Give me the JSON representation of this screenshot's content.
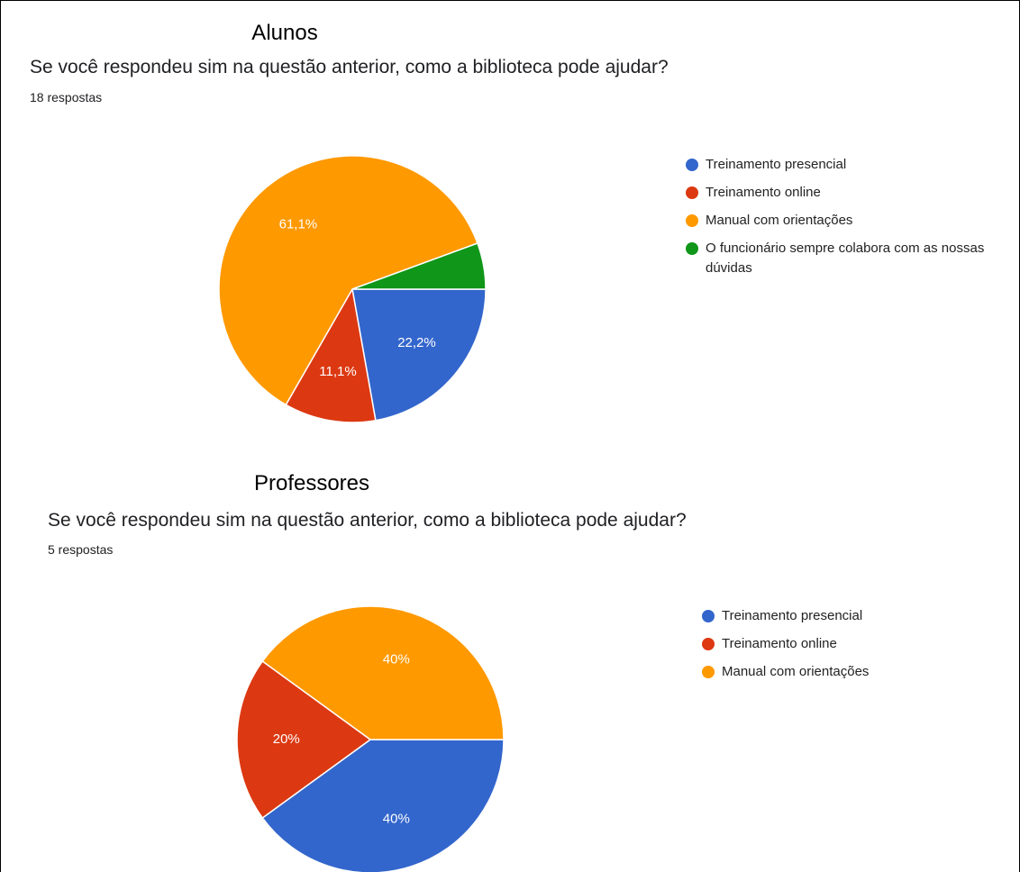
{
  "chart_data": [
    {
      "type": "pie",
      "title": "Alunos",
      "subtitle": "Se você respondeu sim na questão anterior,  como a biblioteca pode ajudar?",
      "note": "18 respostas",
      "categories": [
        "Treinamento presencial",
        "Treinamento online",
        "Manual com orientações",
        "O funcionário sempre colabora com as nossas dúvidas"
      ],
      "values": [
        22.2,
        11.1,
        61.1,
        5.6
      ],
      "value_labels": [
        "22,2%",
        "11,1%",
        "61,1%",
        null
      ],
      "colors": [
        "#3366cc",
        "#dc3912",
        "#ff9900",
        "#109618"
      ],
      "legend": "right"
    },
    {
      "type": "pie",
      "title": "Professores",
      "subtitle": "Se você respondeu sim na questão anterior,  como a biblioteca pode ajudar?",
      "note": "5 respostas",
      "categories": [
        "Treinamento presencial",
        "Treinamento online",
        "Manual com orientações"
      ],
      "values": [
        40,
        20,
        40
      ],
      "value_labels": [
        "40%",
        "20%",
        "40%"
      ],
      "colors": [
        "#3366cc",
        "#dc3912",
        "#ff9900"
      ],
      "legend": "right"
    }
  ]
}
